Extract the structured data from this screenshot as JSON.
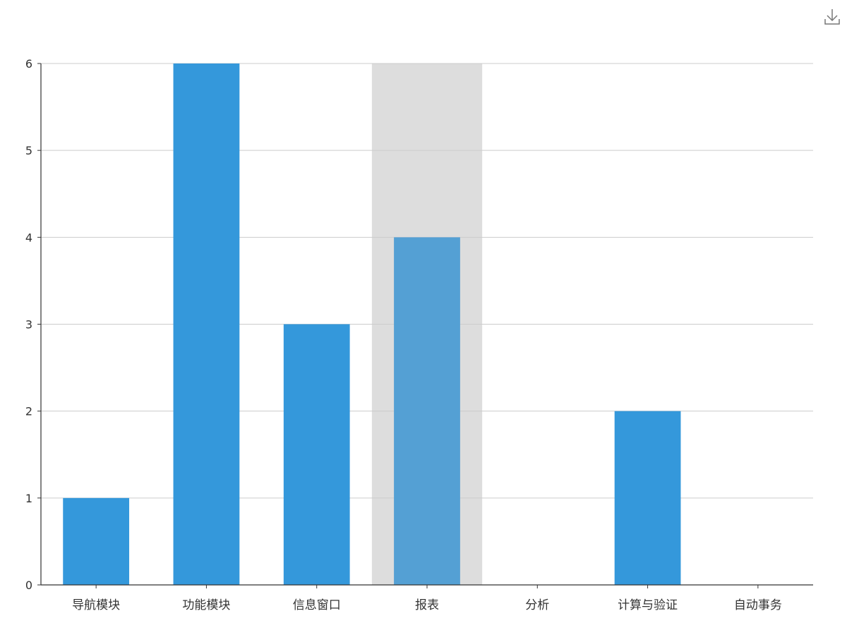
{
  "toolbox": {
    "icon": "download-icon"
  },
  "chart_data": {
    "type": "bar",
    "categories": [
      "导航模块",
      "功能模块",
      "信息窗口",
      "报表",
      "分析",
      "计算与验证",
      "自动事务"
    ],
    "values": [
      1,
      6,
      3,
      4,
      0,
      2,
      0
    ],
    "ylim": [
      0,
      6
    ],
    "yticks": [
      0,
      1,
      2,
      3,
      4,
      5,
      6
    ],
    "grid": true,
    "highlighted_category": "报表",
    "colors": {
      "bar": "#3498db",
      "bar_highlight": "#54a0d4",
      "hover_band": "#dddddd",
      "grid": "#cccccc",
      "axis": "#333333",
      "text": "#333333",
      "icon": "#777777"
    }
  }
}
